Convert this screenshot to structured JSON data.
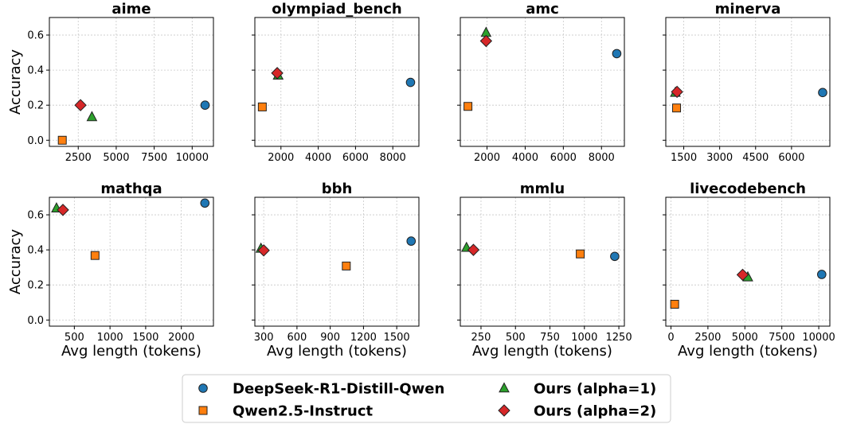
{
  "chart_data": [
    {
      "type": "scatter",
      "title": "aime",
      "ylabel": "Accuracy",
      "xlabel": "",
      "xlim": [
        600,
        11400
      ],
      "xticks": [
        2500,
        5000,
        7500,
        10000
      ],
      "ylim": [
        -0.035,
        0.7
      ],
      "yticks": [
        0.0,
        0.2,
        0.4,
        0.6
      ],
      "series": [
        {
          "name": "DeepSeek-R1-Distill-Qwen",
          "points": [
            [
              10850,
              0.2
            ]
          ]
        },
        {
          "name": "Qwen2.5-Instruct",
          "points": [
            [
              1450,
              0.0
            ]
          ]
        },
        {
          "name": "Ours (alpha=1)",
          "points": [
            [
              3400,
              0.133
            ]
          ]
        },
        {
          "name": "Ours (alpha=2)",
          "points": [
            [
              2650,
              0.2
            ]
          ]
        }
      ]
    },
    {
      "type": "scatter",
      "title": "olympiad_bench",
      "ylabel": "",
      "xlabel": "",
      "xlim": [
        600,
        9400
      ],
      "xticks": [
        2000,
        4000,
        6000,
        8000
      ],
      "ylim": [
        -0.035,
        0.7
      ],
      "yticks": [
        0.0,
        0.2,
        0.4,
        0.6
      ],
      "series": [
        {
          "name": "DeepSeek-R1-Distill-Qwen",
          "points": [
            [
              8950,
              0.33
            ]
          ]
        },
        {
          "name": "Qwen2.5-Instruct",
          "points": [
            [
              1000,
              0.19
            ]
          ]
        },
        {
          "name": "Ours (alpha=1)",
          "points": [
            [
              1850,
              0.37
            ]
          ]
        },
        {
          "name": "Ours (alpha=2)",
          "points": [
            [
              1800,
              0.383
            ]
          ]
        }
      ]
    },
    {
      "type": "scatter",
      "title": "amc",
      "ylabel": "",
      "xlabel": "",
      "xlim": [
        600,
        9200
      ],
      "xticks": [
        2000,
        4000,
        6000,
        8000
      ],
      "ylim": [
        -0.035,
        0.7
      ],
      "yticks": [
        0.0,
        0.2,
        0.4,
        0.6
      ],
      "series": [
        {
          "name": "DeepSeek-R1-Distill-Qwen",
          "points": [
            [
              8800,
              0.494
            ]
          ]
        },
        {
          "name": "Qwen2.5-Instruct",
          "points": [
            [
              1000,
              0.193
            ]
          ]
        },
        {
          "name": "Ours (alpha=1)",
          "points": [
            [
              1950,
              0.614
            ]
          ]
        },
        {
          "name": "Ours (alpha=2)",
          "points": [
            [
              1950,
              0.566
            ]
          ]
        }
      ]
    },
    {
      "type": "scatter",
      "title": "minerva",
      "ylabel": "",
      "xlabel": "",
      "xlim": [
        750,
        7600
      ],
      "xticks": [
        1500,
        3000,
        4500,
        6000
      ],
      "ylim": [
        -0.035,
        0.7
      ],
      "yticks": [
        0.0,
        0.2,
        0.4,
        0.6
      ],
      "series": [
        {
          "name": "DeepSeek-R1-Distill-Qwen",
          "points": [
            [
              7300,
              0.272
            ]
          ]
        },
        {
          "name": "Qwen2.5-Instruct",
          "points": [
            [
              1200,
              0.184
            ]
          ]
        },
        {
          "name": "Ours (alpha=1)",
          "points": [
            [
              1150,
              0.272
            ]
          ]
        },
        {
          "name": "Ours (alpha=2)",
          "points": [
            [
              1220,
              0.276
            ]
          ]
        }
      ]
    },
    {
      "type": "scatter",
      "title": "mathqa",
      "ylabel": "Accuracy",
      "xlabel": "Avg length (tokens)",
      "xlim": [
        150,
        2450
      ],
      "xticks": [
        500,
        1000,
        1500,
        2000
      ],
      "ylim": [
        -0.035,
        0.7
      ],
      "yticks": [
        0.0,
        0.2,
        0.4,
        0.6
      ],
      "series": [
        {
          "name": "DeepSeek-R1-Distill-Qwen",
          "points": [
            [
              2330,
              0.667
            ]
          ]
        },
        {
          "name": "Qwen2.5-Instruct",
          "points": [
            [
              790,
              0.368
            ]
          ]
        },
        {
          "name": "Ours (alpha=1)",
          "points": [
            [
              250,
              0.638
            ]
          ]
        },
        {
          "name": "Ours (alpha=2)",
          "points": [
            [
              340,
              0.628
            ]
          ]
        }
      ]
    },
    {
      "type": "scatter",
      "title": "bbh",
      "ylabel": "",
      "xlabel": "Avg length (tokens)",
      "xlim": [
        220,
        1700
      ],
      "xticks": [
        300,
        600,
        900,
        1200,
        1500
      ],
      "ylim": [
        -0.035,
        0.7
      ],
      "yticks": [
        0.0,
        0.2,
        0.4,
        0.6
      ],
      "series": [
        {
          "name": "DeepSeek-R1-Distill-Qwen",
          "points": [
            [
              1630,
              0.45
            ]
          ]
        },
        {
          "name": "Qwen2.5-Instruct",
          "points": [
            [
              1045,
              0.308
            ]
          ]
        },
        {
          "name": "Ours (alpha=1)",
          "points": [
            [
              275,
              0.408
            ]
          ]
        },
        {
          "name": "Ours (alpha=2)",
          "points": [
            [
              300,
              0.397
            ]
          ]
        }
      ]
    },
    {
      "type": "scatter",
      "title": "mmlu",
      "ylabel": "",
      "xlabel": "Avg length (tokens)",
      "xlim": [
        100,
        1290
      ],
      "xticks": [
        250,
        500,
        750,
        1000,
        1250
      ],
      "ylim": [
        -0.035,
        0.7
      ],
      "yticks": [
        0.0,
        0.2,
        0.4,
        0.6
      ],
      "series": [
        {
          "name": "DeepSeek-R1-Distill-Qwen",
          "points": [
            [
              1220,
              0.363
            ]
          ]
        },
        {
          "name": "Qwen2.5-Instruct",
          "points": [
            [
              970,
              0.377
            ]
          ]
        },
        {
          "name": "Ours (alpha=1)",
          "points": [
            [
              145,
              0.413
            ]
          ]
        },
        {
          "name": "Ours (alpha=2)",
          "points": [
            [
              195,
              0.4
            ]
          ]
        }
      ]
    },
    {
      "type": "scatter",
      "title": "livecodebench",
      "ylabel": "",
      "xlabel": "Avg length (tokens)",
      "xlim": [
        -350,
        10750
      ],
      "xticks": [
        0,
        2500,
        5000,
        7500,
        10000
      ],
      "ylim": [
        -0.035,
        0.7
      ],
      "yticks": [
        0.0,
        0.2,
        0.4,
        0.6
      ],
      "series": [
        {
          "name": "DeepSeek-R1-Distill-Qwen",
          "points": [
            [
              10200,
              0.26
            ]
          ]
        },
        {
          "name": "Qwen2.5-Instruct",
          "points": [
            [
              250,
              0.09
            ]
          ]
        },
        {
          "name": "Ours (alpha=1)",
          "points": [
            [
              5200,
              0.245
            ]
          ]
        },
        {
          "name": "Ours (alpha=2)",
          "points": [
            [
              4850,
              0.258
            ]
          ]
        }
      ]
    }
  ],
  "legend": {
    "position": "bottom-center",
    "items": [
      {
        "label": "DeepSeek-R1-Distill-Qwen",
        "marker": "circle",
        "color": "#1f77b4"
      },
      {
        "label": "Qwen2.5-Instruct",
        "marker": "square",
        "color": "#ff7f0e"
      },
      {
        "label": "Ours (alpha=1)",
        "marker": "triangle",
        "color": "#2ca02c"
      },
      {
        "label": "Ours (alpha=2)",
        "marker": "diamond",
        "color": "#d62728"
      }
    ]
  },
  "style": {
    "grid": true,
    "marker_edge": "#222222",
    "grid_color": "#c8c8c8"
  }
}
